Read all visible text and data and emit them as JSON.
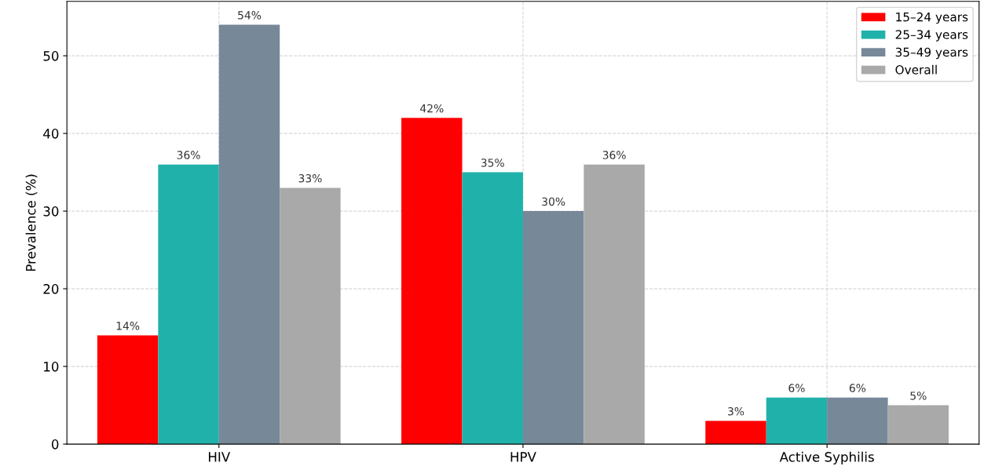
{
  "chart_data": {
    "type": "bar",
    "ylabel": "Prevalence (%)",
    "categories": [
      "HIV",
      "HPV",
      "Active Syphilis"
    ],
    "series": [
      {
        "name": "15–24 years",
        "color": "#ff0000",
        "values": [
          14,
          42,
          3
        ],
        "value_labels": [
          "14%",
          "42%",
          "3%"
        ]
      },
      {
        "name": "25–34 years",
        "color": "#20b2aa",
        "values": [
          36,
          35,
          6
        ],
        "value_labels": [
          "36%",
          "35%",
          "6%"
        ]
      },
      {
        "name": "35–49 years",
        "color": "#778899",
        "values": [
          54,
          30,
          6
        ],
        "value_labels": [
          "54%",
          "30%",
          "6%"
        ]
      },
      {
        "name": "Overall",
        "color": "#a9a9a9",
        "values": [
          33,
          36,
          5
        ],
        "value_labels": [
          "33%",
          "36%",
          "5%"
        ]
      }
    ],
    "ylim": [
      0,
      57
    ],
    "yticks": [
      0,
      10,
      20,
      30,
      40,
      50
    ],
    "grid": true,
    "legend": "top right"
  }
}
